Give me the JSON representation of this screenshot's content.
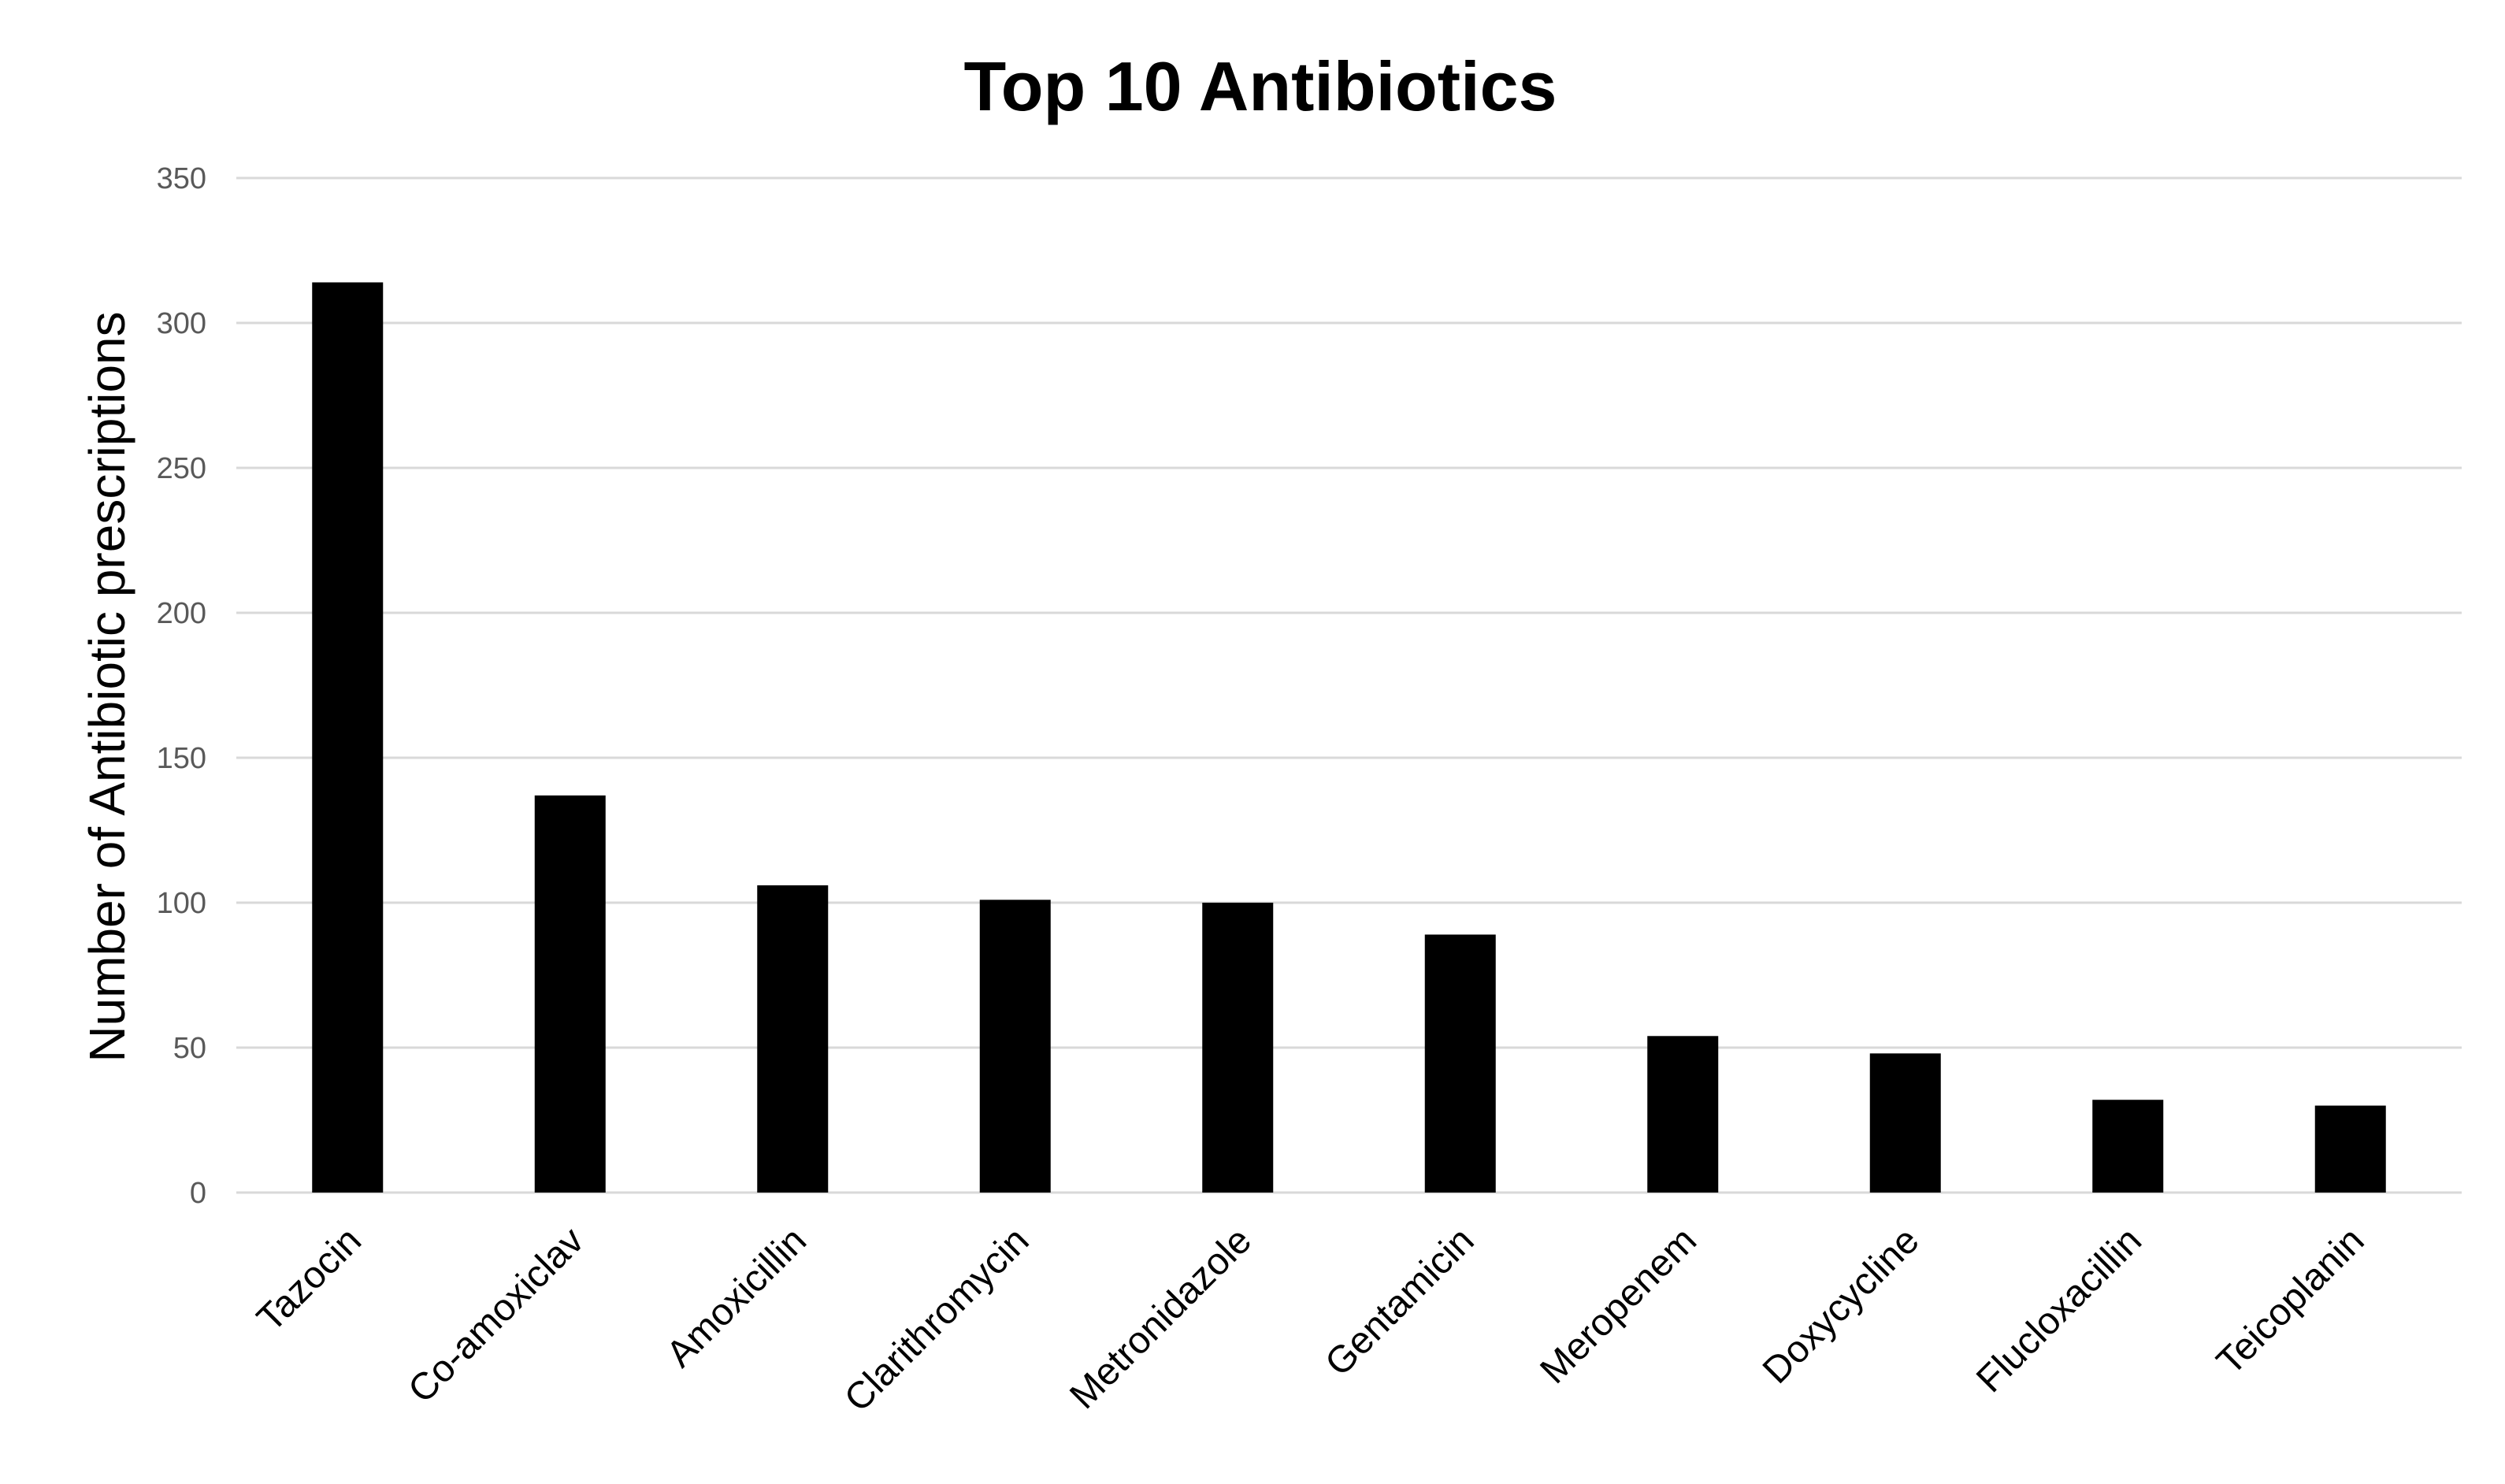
{
  "chart_data": {
    "type": "bar",
    "title": "Top 10 Antibiotics",
    "xlabel": "",
    "ylabel": "Number of Antibiotic prescriptions",
    "categories": [
      "Tazocin",
      "Co-amoxiclav",
      "Amoxicillin",
      "Clarithromycin",
      "Metronidazole",
      "Gentamicin",
      "Meropenem",
      "Doxycycline",
      "Flucloxacillin",
      "Teicoplanin"
    ],
    "values": [
      314,
      137,
      106,
      101,
      100,
      89,
      54,
      48,
      32,
      30
    ],
    "ylim": [
      0,
      350
    ],
    "yticks": [
      0,
      50,
      100,
      150,
      200,
      250,
      300,
      350
    ],
    "grid": true,
    "bar_color": "#000000",
    "grid_color": "#d9d9d9"
  }
}
